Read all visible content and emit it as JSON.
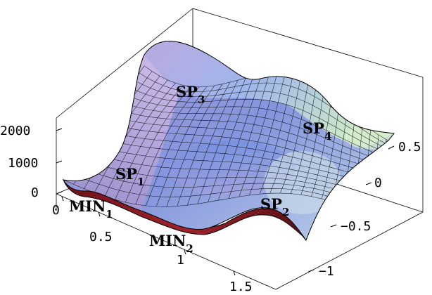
{
  "figure": {
    "z_ticks": [
      "2000",
      "1000",
      "0"
    ],
    "y_ticks": [
      "0.5",
      "0",
      "−0.5",
      "−1"
    ],
    "x_ticks": [
      "0",
      "0.5",
      "1",
      "1.5"
    ],
    "points": [
      {
        "main": "SP",
        "sub": "3"
      },
      {
        "main": "SP",
        "sub": "4"
      },
      {
        "main": "SP",
        "sub": "1"
      },
      {
        "main": "SP",
        "sub": "2"
      },
      {
        "main": "MIN",
        "sub": "1"
      },
      {
        "main": "MIN",
        "sub": "2"
      }
    ]
  },
  "colors": {
    "surface_low": "#8f86c8",
    "surface_mid": "#a99fd6",
    "surface_blue": "#7ea6e8",
    "surface_high": "#cfe8c6",
    "underside": "#8a1a22",
    "grid": "#000000"
  }
}
